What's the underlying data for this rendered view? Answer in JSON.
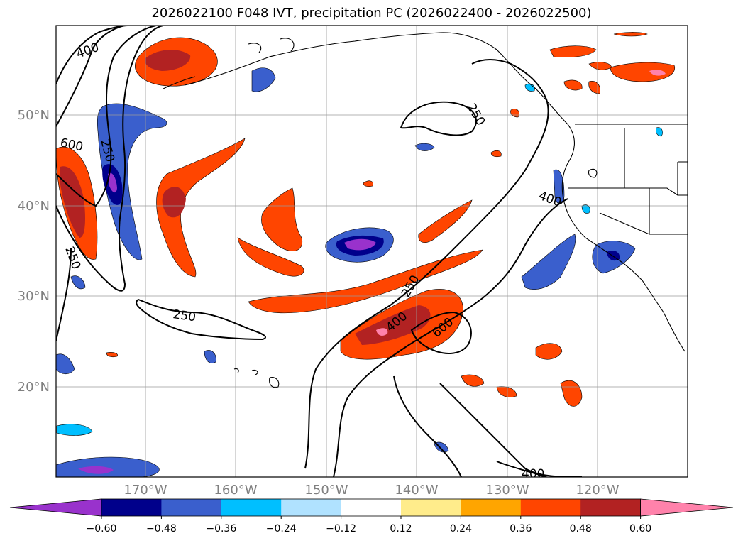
{
  "title": "2026022100 F048 IVT, precipitation PC (2026022400 - 2026022500)",
  "lat_labels": [
    "50°N",
    "40°N",
    "30°N",
    "20°N"
  ],
  "lon_labels": [
    "170°W",
    "160°W",
    "150°W",
    "140°W",
    "130°W",
    "120°W"
  ],
  "contour_labels": [
    "400",
    "600",
    "250",
    "250",
    "400",
    "250",
    "250",
    "250",
    "400",
    "600",
    "400"
  ],
  "colorbar": {
    "ticks": [
      "−0.60",
      "−0.48",
      "−0.36",
      "−0.24",
      "−0.12",
      "0.12",
      "0.24",
      "0.36",
      "0.48",
      "0.60"
    ],
    "colors": [
      "#9932cc",
      "#00008b",
      "#3a5fcd",
      "#00bfff",
      "#b0e2ff",
      "#ffffff",
      "#ffec8b",
      "#ffa500",
      "#ff4500",
      "#b22222",
      "#ff82ab"
    ]
  },
  "colors": {
    "neg_outer": "#b0e2ff",
    "neg_1": "#00bfff",
    "neg_2": "#3a5fcd",
    "neg_3": "#00008b",
    "neg_4": "#9932cc",
    "pos_outer": "#ffec8b",
    "pos_1": "#ffa500",
    "pos_2": "#ff4500",
    "pos_3": "#b22222",
    "pos_4": "#ff82ab"
  }
}
